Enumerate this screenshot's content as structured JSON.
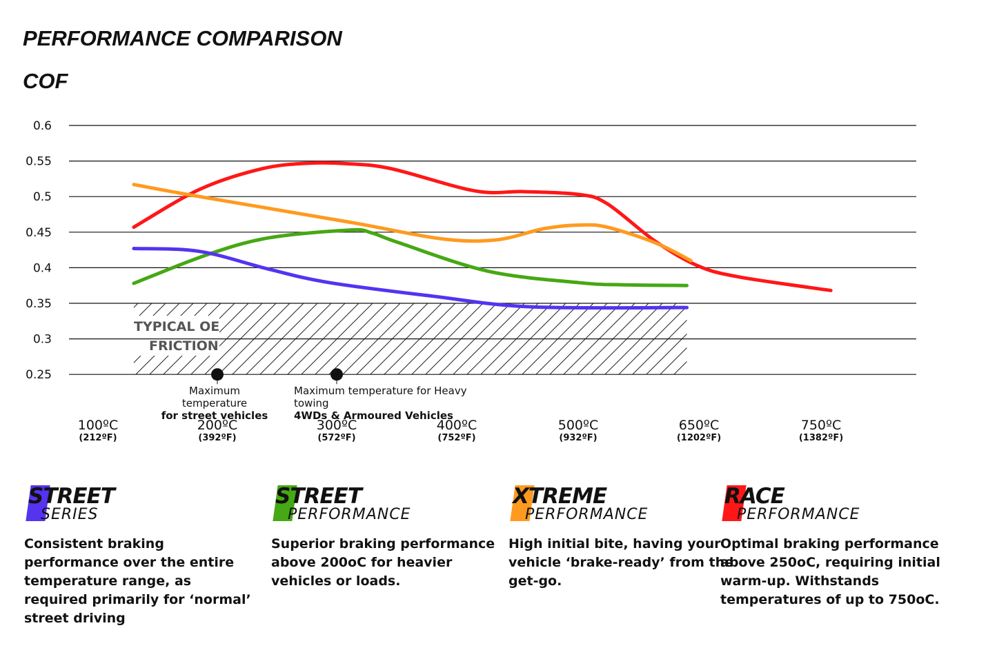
{
  "title": "PERFORMANCE COMPARISON",
  "ylabel": "COF",
  "chart_data": {
    "type": "line",
    "title": "PERFORMANCE COMPARISON",
    "ylabel": "COF",
    "ylim": [
      0.25,
      0.6
    ],
    "yticks": [
      "0.6",
      "0.55",
      "0.5",
      "0.45",
      "0.4",
      "0.35",
      "0.3",
      "0.25"
    ],
    "grid": true,
    "x_categories": [
      {
        "c": "100ºC",
        "f": "(212ºF)",
        "t": 100
      },
      {
        "c": "200ºC",
        "f": "(392ºF)",
        "t": 200
      },
      {
        "c": "300ºC",
        "f": "(572ºF)",
        "t": 300
      },
      {
        "c": "400ºC",
        "f": "(752ºF)",
        "t": 400
      },
      {
        "c": "500ºC",
        "f": "(932ºF)",
        "t": 500
      },
      {
        "c": "650ºC",
        "f": "(1202ºF)",
        "t": 650
      },
      {
        "c": "750ºC",
        "f": "(1382ºF)",
        "t": 750
      }
    ],
    "series": [
      {
        "color": "#ff1717",
        "x": [
          130,
          185,
          237,
          277,
          311,
          346,
          415,
          455,
          501,
          536,
          596,
          648,
          683,
          758
        ],
        "y": [
          0.457,
          0.51,
          0.539,
          0.547,
          0.546,
          0.539,
          0.508,
          0.507,
          0.503,
          0.49,
          0.437,
          0.403,
          0.387,
          0.368
        ]
      },
      {
        "color": "#ff9a1f",
        "x": [
          130,
          185,
          311,
          386,
          432,
          472,
          501,
          536,
          596,
          640
        ],
        "y": [
          0.517,
          0.5,
          0.464,
          0.441,
          0.439,
          0.455,
          0.46,
          0.457,
          0.435,
          0.41
        ]
      },
      {
        "color": "#46a814",
        "x": [
          130,
          191,
          243,
          311,
          329,
          352,
          426,
          501,
          554,
          635
        ],
        "y": [
          0.378,
          0.418,
          0.442,
          0.453,
          0.449,
          0.435,
          0.395,
          0.379,
          0.376,
          0.375
        ]
      },
      {
        "color": "#5533f0",
        "x": [
          130,
          185,
          243,
          294,
          380,
          461,
          635
        ],
        "y": [
          0.427,
          0.423,
          0.398,
          0.379,
          0.36,
          0.345,
          0.344
        ]
      }
    ],
    "hatched_region": {
      "label1": "TYPICAL OE",
      "label2": "FRICTION",
      "x": [
        130,
        635
      ],
      "y": [
        0.25,
        0.35
      ]
    },
    "annotations": [
      {
        "t": 200,
        "line1": "Maximum temperature",
        "line2": "for street vehicles"
      },
      {
        "t": 300,
        "line1": "Maximum temperature for Heavy towing",
        "line2": "4WDs & Armoured Vehicles"
      }
    ]
  },
  "legend": [
    {
      "top": "STREET",
      "bottom": "SERIES",
      "color": "#5533f0",
      "desc": "Consistent braking performance over the entire temperature range, as required primarily for ‘normal’ street driving"
    },
    {
      "top": "STREET",
      "bottom": "PERFORMANCE",
      "color": "#46a814",
      "desc": "Superior braking performance above 200oC for heavier vehicles or loads."
    },
    {
      "top": "XTREME",
      "bottom": "PERFORMANCE",
      "color": "#ff9a1f",
      "desc": "High initial bite, having your vehicle ‘brake-ready’ from the get-go."
    },
    {
      "top": "RACE",
      "bottom": "PERFORMANCE",
      "color": "#ff1717",
      "desc": "Optimal braking performance above 250oC, requiring initial warm-up. Withstands temperatures of up to 750oC."
    }
  ]
}
